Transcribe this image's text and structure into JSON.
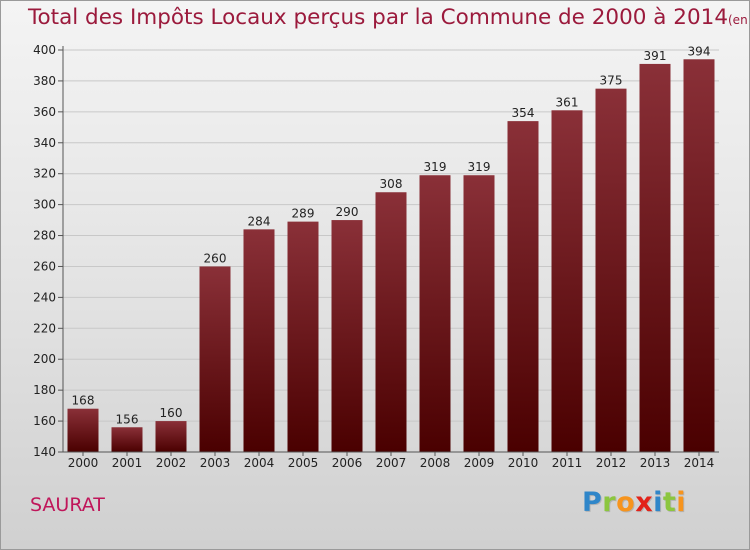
{
  "title": "Total des Impôts Locaux perçus par la Commune de 2000 à 2014",
  "title_unit": "(en milliers d'€)",
  "commune": "SAURAT",
  "logo": {
    "letters": [
      "P",
      "r",
      "o",
      "x",
      "i",
      "t",
      "i"
    ],
    "colors": [
      "#2f86c9",
      "#8cc63f",
      "#f7941d",
      "#e2231a",
      "#2f86c9",
      "#8cc63f",
      "#f7941d"
    ]
  },
  "colors": {
    "bar_top": "#8a3038",
    "bar_bottom": "#4a0000",
    "title": "#9b1a3c",
    "commune": "#c0165a"
  },
  "chart_data": {
    "type": "bar",
    "title": "Total des Impôts Locaux perçus par la Commune de 2000 à 2014",
    "unit": "(en milliers d'€)",
    "categories": [
      "2000",
      "2001",
      "2002",
      "2003",
      "2004",
      "2005",
      "2006",
      "2007",
      "2008",
      "2009",
      "2010",
      "2011",
      "2012",
      "2013",
      "2014"
    ],
    "values": [
      168,
      156,
      160,
      260,
      284,
      289,
      290,
      308,
      319,
      319,
      354,
      361,
      375,
      391,
      394
    ],
    "ylim": [
      140,
      400
    ],
    "yticks": [
      140,
      160,
      180,
      200,
      220,
      240,
      260,
      280,
      300,
      320,
      340,
      360,
      380,
      400
    ],
    "grid": true,
    "data_labels": true
  }
}
